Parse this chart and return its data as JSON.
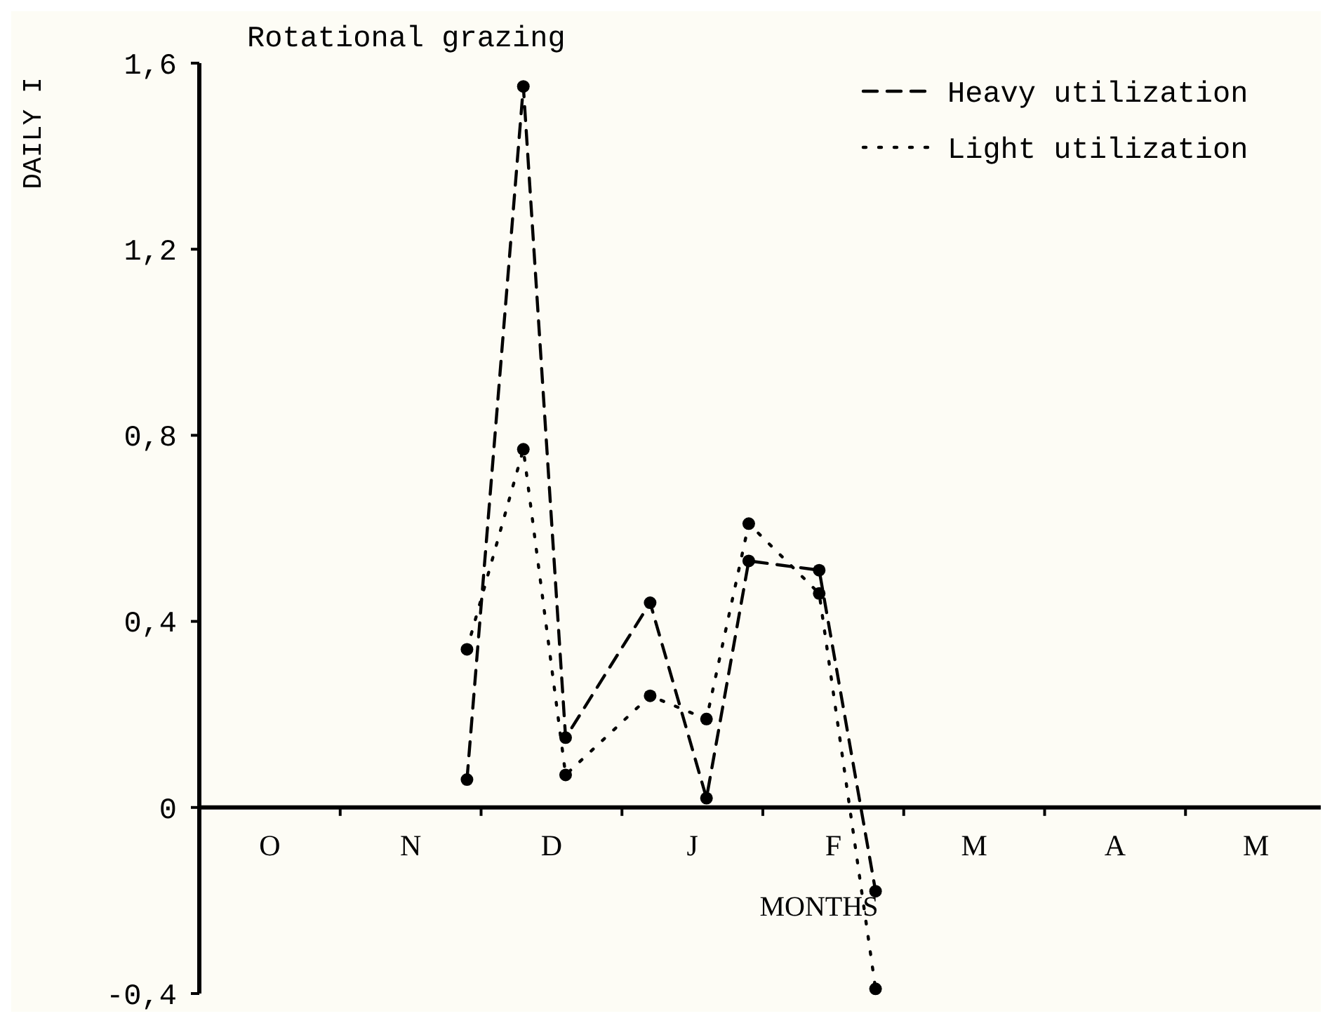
{
  "chart_data": {
    "type": "line",
    "title": "Rotational grazing",
    "xlabel": "MONTHS",
    "ylabel": "DAILY I",
    "categories": [
      null,
      null,
      null,
      null,
      null,
      "O",
      null,
      null,
      null,
      null,
      null,
      null,
      null,
      null,
      null,
      "N",
      null,
      null,
      null,
      null,
      null,
      null,
      null,
      null,
      null,
      "D",
      null,
      null,
      null,
      null,
      null,
      null,
      null,
      null,
      null,
      "J",
      null,
      null,
      null,
      null,
      null,
      null,
      null,
      null,
      null,
      "F",
      null,
      null,
      null,
      null,
      null,
      null,
      null,
      null,
      null,
      "M",
      null,
      null,
      null,
      null,
      null,
      null,
      null,
      null,
      null,
      "A",
      null,
      null,
      null,
      null,
      null,
      null,
      null,
      null,
      null,
      "M",
      null,
      null,
      null,
      null,
      null
    ],
    "ylim": [
      -0.4,
      1.6
    ],
    "yticks": [
      {
        "value": -0.4,
        "label": "-0,4"
      },
      0,
      {
        "value": 0.4,
        "label": "0,4"
      },
      {
        "value": 0.8,
        "label": "0,8"
      },
      {
        "value": 1.2,
        "label": "1,2"
      },
      {
        "value": 1.6,
        "label": "1,6"
      }
    ],
    "series": [
      {
        "name": "Heavy utilization",
        "color": "#000000",
        "line_style": "dashed",
        "values": [
          null,
          null,
          null,
          null,
          null,
          null,
          null,
          null,
          null,
          null,
          null,
          null,
          null,
          null,
          null,
          null,
          null,
          null,
          null,
          0.06,
          null,
          null,
          null,
          1.55,
          null,
          null,
          0.15,
          null,
          null,
          null,
          null,
          null,
          0.44,
          null,
          null,
          null,
          0.02,
          null,
          null,
          0.53,
          null,
          null,
          null,
          null,
          0.51,
          null,
          null,
          null,
          -0.18,
          null,
          null,
          null,
          null,
          null,
          null,
          null,
          null,
          null,
          null,
          null,
          null,
          null,
          null,
          null,
          null,
          null,
          null,
          null,
          null,
          null,
          null,
          null,
          null,
          null,
          null,
          null,
          null,
          null,
          null,
          null,
          null
        ]
      },
      {
        "name": "Light utilization",
        "color": "#000000",
        "line_style": "dotted",
        "values": [
          null,
          null,
          null,
          null,
          null,
          null,
          null,
          null,
          null,
          null,
          null,
          null,
          null,
          null,
          null,
          null,
          null,
          null,
          null,
          0.34,
          null,
          null,
          null,
          0.77,
          null,
          null,
          0.07,
          null,
          null,
          null,
          null,
          null,
          0.24,
          null,
          null,
          null,
          0.19,
          null,
          null,
          0.61,
          null,
          null,
          null,
          null,
          0.46,
          null,
          null,
          null,
          -0.39,
          null,
          null,
          null,
          null,
          null,
          null,
          null,
          null,
          null,
          null,
          null,
          null,
          null,
          null,
          null,
          null,
          null,
          null,
          null,
          null,
          null,
          null,
          null,
          null,
          null,
          null,
          null,
          null,
          null,
          null,
          null,
          null
        ]
      }
    ],
    "marker": "circle",
    "legend": "top right",
    "grid": false
  }
}
